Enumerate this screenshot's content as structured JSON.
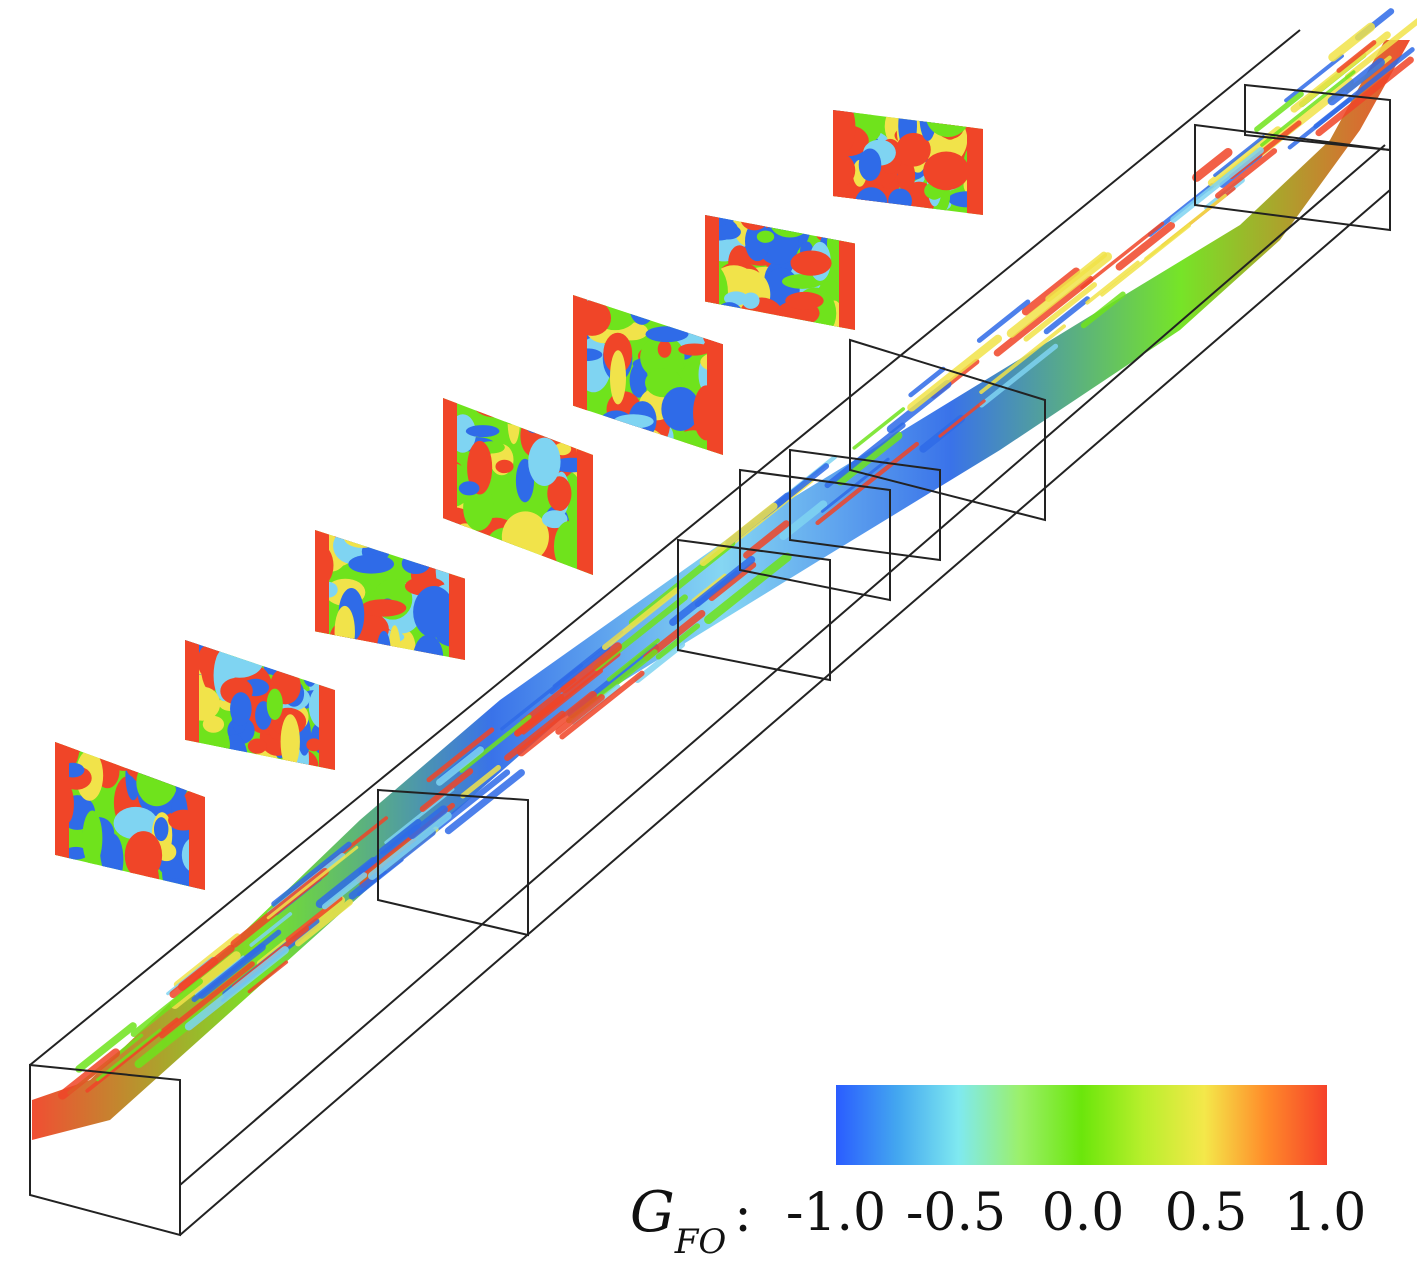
{
  "legend": {
    "variable_symbol": "G",
    "variable_subscript": "FO",
    "separator": ":",
    "tick_labels": [
      "-1.0",
      "-0.5",
      "0.0",
      "0.5",
      "1.0"
    ],
    "colormap": [
      "#2a5cff",
      "#43a7f0",
      "#7fe9f0",
      "#9bf06a",
      "#6be60b",
      "#b8ef2c",
      "#f4e84a",
      "#ff8c2a",
      "#f5412a"
    ]
  },
  "contour_palette": {
    "blue": "#2f6be8",
    "light_blue": "#7fd4f2",
    "green": "#6fe31c",
    "yellow": "#f1e34a",
    "red": "#f04528",
    "outline": "#222222"
  }
}
